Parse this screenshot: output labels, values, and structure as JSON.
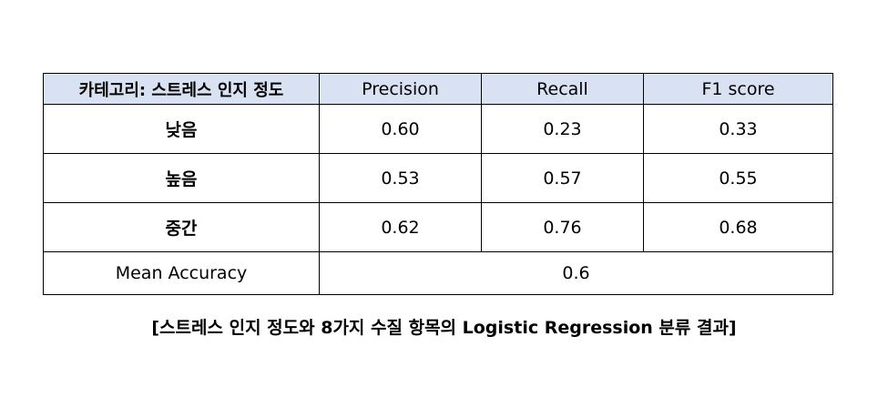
{
  "table": {
    "headers": [
      "카테고리: 스트레스 인지 정도",
      "Precision",
      "Recall",
      "F1 score"
    ],
    "rows": [
      {
        "label": "낮음",
        "precision": "0.60",
        "recall": "0.23",
        "f1": "0.33"
      },
      {
        "label": "높음",
        "precision": "0.53",
        "recall": "0.57",
        "f1": "0.55"
      },
      {
        "label": "중간",
        "precision": "0.62",
        "recall": "0.76",
        "f1": "0.68"
      }
    ],
    "accuracy": {
      "label": "Mean Accuracy",
      "value": "0.6"
    },
    "header_bg": "#d9e2f3"
  },
  "caption": "[스트레스 인지 정도와 8가지 수질 항목의 Logistic Regression 분류 결과]"
}
